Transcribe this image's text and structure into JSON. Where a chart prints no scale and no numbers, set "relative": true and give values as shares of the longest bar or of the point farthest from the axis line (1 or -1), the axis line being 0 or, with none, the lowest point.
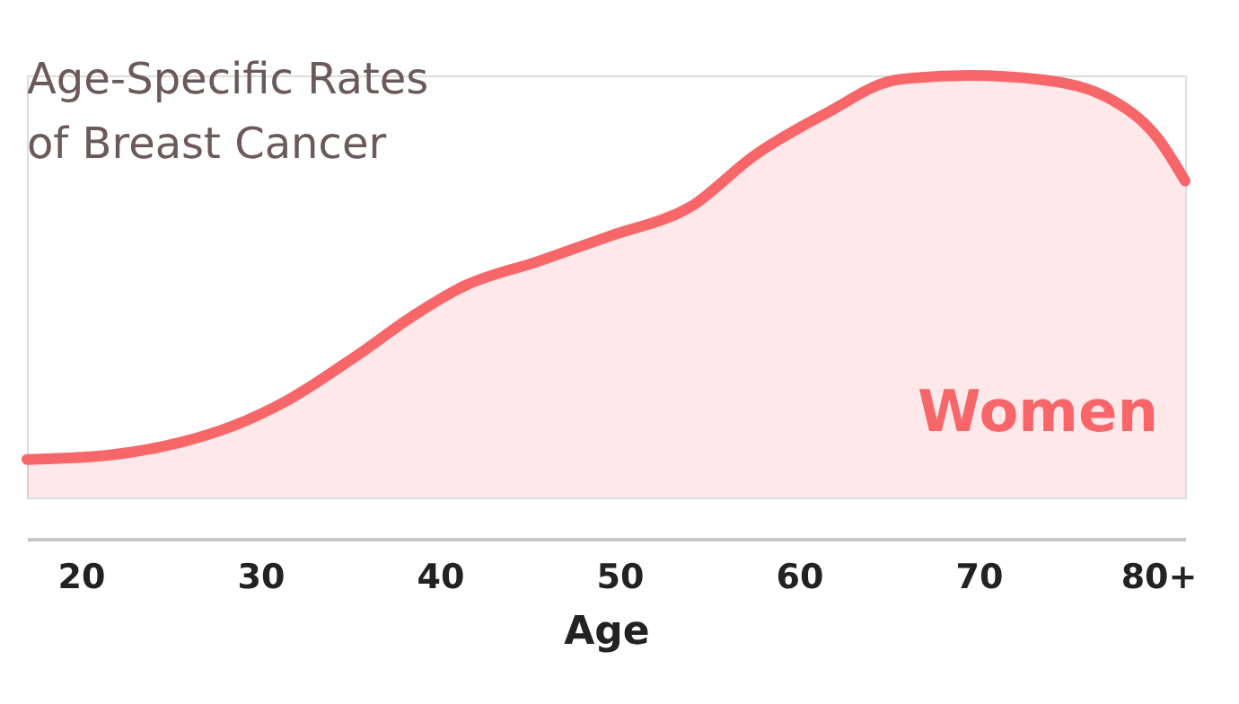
{
  "chart_data": {
    "type": "area",
    "title": "Age-Specific Rates\nof Breast Cancer",
    "xlabel": "Age",
    "relative": true,
    "legend": false,
    "grid": false,
    "xlim": [
      17,
      81.5
    ],
    "xticks": [
      20,
      30,
      40,
      50,
      60,
      70,
      {
        "value": 80,
        "label": "80+"
      }
    ],
    "series": [
      {
        "name": "Women",
        "color": "#f7676a",
        "x": [
          17,
          21.5,
          25.5,
          28.5,
          31.5,
          35.5,
          38.5,
          41.3,
          45.5,
          49.5,
          54,
          57.5,
          61.5,
          65.5,
          69.5,
          73.5,
          77.5,
          80,
          81.5
        ],
        "values": [
          0.09,
          0.1,
          0.13,
          0.17,
          0.23,
          0.34,
          0.43,
          0.5,
          0.56,
          0.62,
          0.69,
          0.81,
          0.91,
          0.99,
          1.0,
          0.99,
          0.94,
          0.85,
          0.75
        ]
      }
    ]
  }
}
